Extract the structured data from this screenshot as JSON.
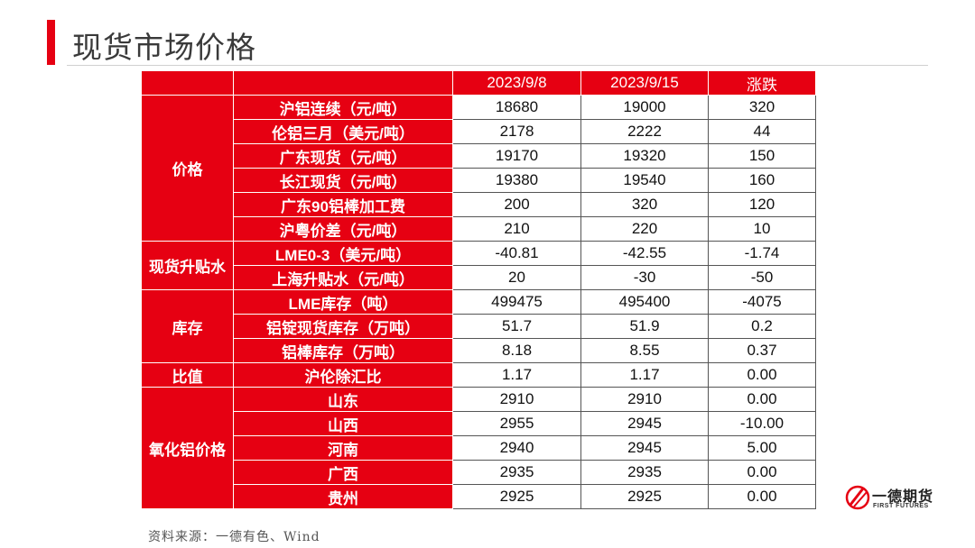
{
  "page": {
    "title": "现货市场价格"
  },
  "table": {
    "headers": [
      "",
      "",
      "2023/9/8",
      "2023/9/15",
      "涨跌"
    ],
    "groups": [
      {
        "label": "价格",
        "rows": [
          {
            "item": "沪铝连续（元/吨）",
            "v1": "18680",
            "v2": "19000",
            "chg": "320"
          },
          {
            "item": "伦铝三月（美元/吨）",
            "v1": "2178",
            "v2": "2222",
            "chg": "44"
          },
          {
            "item": "广东现货（元/吨）",
            "v1": "19170",
            "v2": "19320",
            "chg": "150"
          },
          {
            "item": "长江现货（元/吨）",
            "v1": "19380",
            "v2": "19540",
            "chg": "160"
          },
          {
            "item": "广东90铝棒加工费",
            "v1": "200",
            "v2": "320",
            "chg": "120"
          },
          {
            "item": "沪粤价差（元/吨）",
            "v1": "210",
            "v2": "220",
            "chg": "10"
          }
        ]
      },
      {
        "label": "现货升贴水",
        "rows": [
          {
            "item": "LME0-3（美元/吨）",
            "v1": "-40.81",
            "v2": "-42.55",
            "chg": "-1.74"
          },
          {
            "item": "上海升贴水（元/吨）",
            "v1": "20",
            "v2": "-30",
            "chg": "-50"
          }
        ]
      },
      {
        "label": "库存",
        "rows": [
          {
            "item": "LME库存（吨）",
            "v1": "499475",
            "v2": "495400",
            "chg": "-4075"
          },
          {
            "item": "铝锭现货库存（万吨）",
            "v1": "51.7",
            "v2": "51.9",
            "chg": "0.2"
          },
          {
            "item": "铝棒库存（万吨）",
            "v1": "8.18",
            "v2": "8.55",
            "chg": "0.37"
          }
        ]
      },
      {
        "label": "比值",
        "rows": [
          {
            "item": "沪伦除汇比",
            "v1": "1.17",
            "v2": "1.17",
            "chg": "0.00"
          }
        ]
      },
      {
        "label": "氧化铝价格",
        "rows": [
          {
            "item": "山东",
            "v1": "2910",
            "v2": "2910",
            "chg": "0.00"
          },
          {
            "item": "山西",
            "v1": "2955",
            "v2": "2945",
            "chg": "-10.00"
          },
          {
            "item": "河南",
            "v1": "2940",
            "v2": "2945",
            "chg": "5.00"
          },
          {
            "item": "广西",
            "v1": "2935",
            "v2": "2935",
            "chg": "0.00"
          },
          {
            "item": "贵州",
            "v1": "2925",
            "v2": "2925",
            "chg": "0.00"
          }
        ]
      }
    ]
  },
  "footer": {
    "source": "资料来源：一德有色、Wind"
  },
  "logo": {
    "name": "一德期货",
    "subtitle": "FIRST FUTURES",
    "color": "#e60012"
  }
}
